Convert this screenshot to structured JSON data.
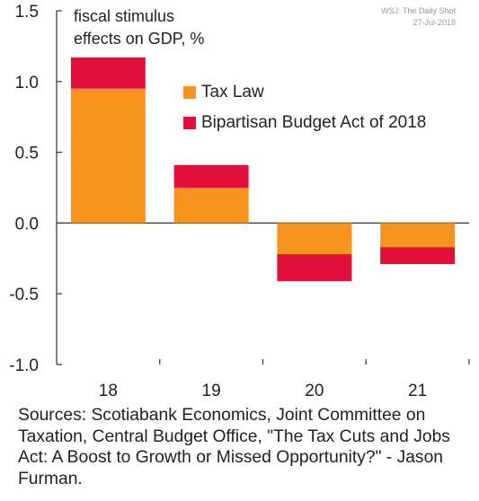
{
  "watermark": {
    "line1": "WSJ: The Daily Shot",
    "line2": "27-Jul-2018"
  },
  "sources_text": "Sources: Scotiabank Economics, Joint Committee on Taxation, Central Budget Office, \"The Tax Cuts and Jobs Act: A Boost to Growth or Missed Opportunity?\" - Jason Furman.",
  "chart_data": {
    "type": "bar",
    "stacked": true,
    "title_lines": [
      "fiscal stimulus",
      "effects on GDP, %"
    ],
    "categories": [
      "18",
      "19",
      "20",
      "21"
    ],
    "series": [
      {
        "name": "Tax Law",
        "color": "#f7931e",
        "values": [
          0.95,
          0.25,
          -0.22,
          -0.17
        ]
      },
      {
        "name": "Bipartisan Budget Act of 2018",
        "color": "#e0103a",
        "values": [
          0.22,
          0.16,
          -0.19,
          -0.12
        ]
      }
    ],
    "yticks": [
      "1.5",
      "1.0",
      "0.5",
      "0.0",
      "-0.5",
      "-1.0"
    ],
    "ylim": [
      -1.0,
      1.5
    ],
    "grid": false,
    "legend_position": "upper-middle"
  }
}
